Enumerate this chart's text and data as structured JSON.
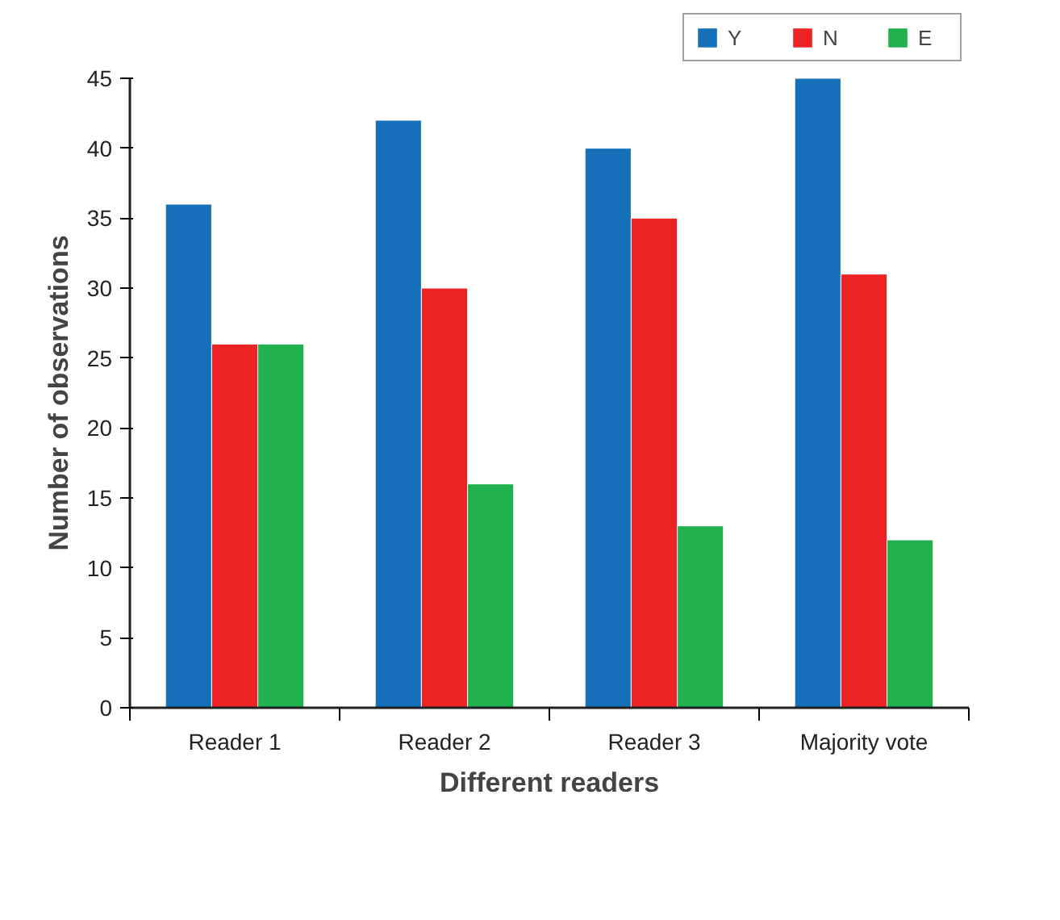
{
  "chart_data": {
    "type": "bar",
    "xlabel": "Different readers",
    "ylabel": "Number of observations",
    "categories": [
      "Reader 1",
      "Reader 2",
      "Reader 3",
      "Majority vote"
    ],
    "series": [
      {
        "name": "Y",
        "color": "#1570b9",
        "values": [
          36,
          42,
          40,
          45
        ]
      },
      {
        "name": "N",
        "color": "#ed2224",
        "values": [
          26,
          30,
          35,
          31
        ]
      },
      {
        "name": "E",
        "color": "#21b14f",
        "values": [
          26,
          16,
          13,
          12
        ]
      }
    ],
    "ylim": [
      0,
      45
    ],
    "yticks": [
      0,
      5,
      10,
      15,
      20,
      25,
      30,
      35,
      40,
      45
    ],
    "grid": false,
    "legend": "top right"
  }
}
